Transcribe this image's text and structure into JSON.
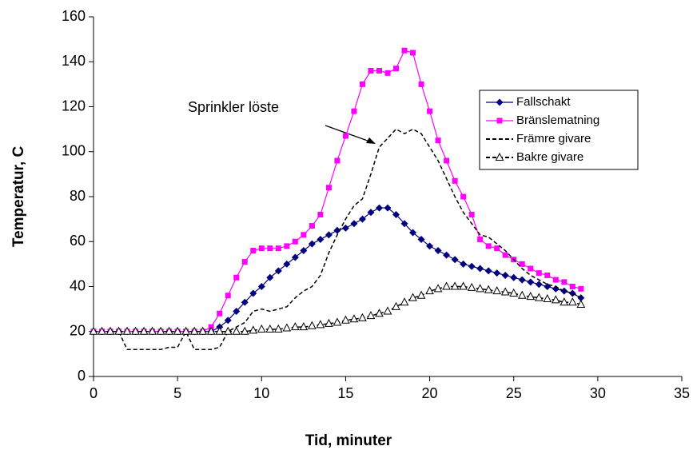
{
  "chart_data": {
    "type": "line",
    "xlabel": "Tid, minuter",
    "ylabel": "Temperatur, C",
    "annotation": "Sprinkler löste",
    "x": [
      0,
      0.5,
      1,
      1.5,
      2,
      2.5,
      3,
      3.5,
      4,
      4.5,
      5,
      5.5,
      6,
      6.5,
      7,
      7.5,
      8,
      8.5,
      9,
      9.5,
      10,
      10.5,
      11,
      11.5,
      12,
      12.5,
      13,
      13.5,
      14,
      14.5,
      15,
      15.5,
      16,
      16.5,
      17,
      17.5,
      18,
      18.5,
      19,
      19.5,
      20,
      20.5,
      21,
      21.5,
      22,
      22.5,
      23,
      23.5,
      24,
      24.5,
      25,
      25.5,
      26,
      26.5,
      27,
      27.5,
      28,
      28.5,
      29
    ],
    "series": [
      {
        "name": "Fallschakt",
        "color": "#000080",
        "marker": "diamond",
        "dashed": false,
        "values": [
          20,
          20,
          20,
          20,
          20,
          20,
          20,
          20,
          20,
          20,
          20,
          20,
          20,
          20,
          20,
          22,
          25,
          29,
          33,
          37,
          40,
          44,
          47,
          50,
          53,
          56,
          59,
          61,
          63,
          65,
          66,
          68,
          70,
          73,
          75,
          75,
          72,
          68,
          64,
          61,
          58,
          56,
          54,
          52,
          50,
          49,
          48,
          47,
          46,
          45,
          44,
          43,
          42,
          41,
          40,
          39,
          38,
          37,
          35
        ]
      },
      {
        "name": "Bränslematning",
        "color": "#ff00ff",
        "marker": "square",
        "dashed": false,
        "values": [
          20,
          20,
          20,
          20,
          20,
          20,
          20,
          20,
          20,
          20,
          20,
          20,
          20,
          20,
          22,
          28,
          36,
          44,
          51,
          56,
          57,
          57,
          57,
          58,
          60,
          63,
          67,
          72,
          84,
          96,
          107,
          118,
          130,
          136,
          136,
          135,
          137,
          145,
          144,
          130,
          118,
          105,
          96,
          87,
          80,
          72,
          61,
          58,
          57,
          54,
          52,
          50,
          48,
          46,
          45,
          43,
          42,
          40,
          39
        ]
      },
      {
        "name": "Främre givare",
        "color": "#000000",
        "marker": "none",
        "dashed": true,
        "values": [
          20,
          20,
          20,
          20,
          12,
          12,
          12,
          12,
          12,
          13,
          13,
          20,
          12,
          12,
          12,
          13,
          20,
          22,
          24,
          29,
          30,
          29,
          30,
          31,
          35,
          38,
          40,
          45,
          55,
          63,
          70,
          76,
          79,
          90,
          102,
          106,
          110,
          108,
          110,
          108,
          102,
          96,
          88,
          80,
          73,
          68,
          63,
          62,
          59,
          56,
          52,
          48,
          45,
          43,
          41,
          40,
          38,
          37,
          35
        ]
      },
      {
        "name": "Bakre givare",
        "color": "#000000",
        "marker": "triangle",
        "dashed": true,
        "values": [
          20,
          20,
          20,
          20,
          20,
          20,
          20,
          20,
          20,
          20,
          20,
          20,
          20,
          20,
          20,
          20,
          20,
          20,
          20,
          20.5,
          21,
          21,
          21,
          21.5,
          22,
          22,
          22.5,
          23,
          23.5,
          24,
          25,
          25.5,
          26,
          27,
          28,
          29,
          31,
          33,
          35,
          36,
          38,
          39,
          40,
          40,
          40,
          39.5,
          39,
          38.5,
          38,
          37.5,
          37,
          36,
          35.5,
          35,
          34.5,
          34,
          33,
          33,
          32
        ]
      }
    ],
    "xlim": [
      0,
      35
    ],
    "xticks": [
      0,
      5,
      10,
      15,
      20,
      25,
      30,
      35
    ],
    "ylim": [
      0,
      160
    ],
    "yticks": [
      0,
      20,
      40,
      60,
      80,
      100,
      120,
      140,
      160
    ],
    "grid": false,
    "legend": "upper right"
  }
}
